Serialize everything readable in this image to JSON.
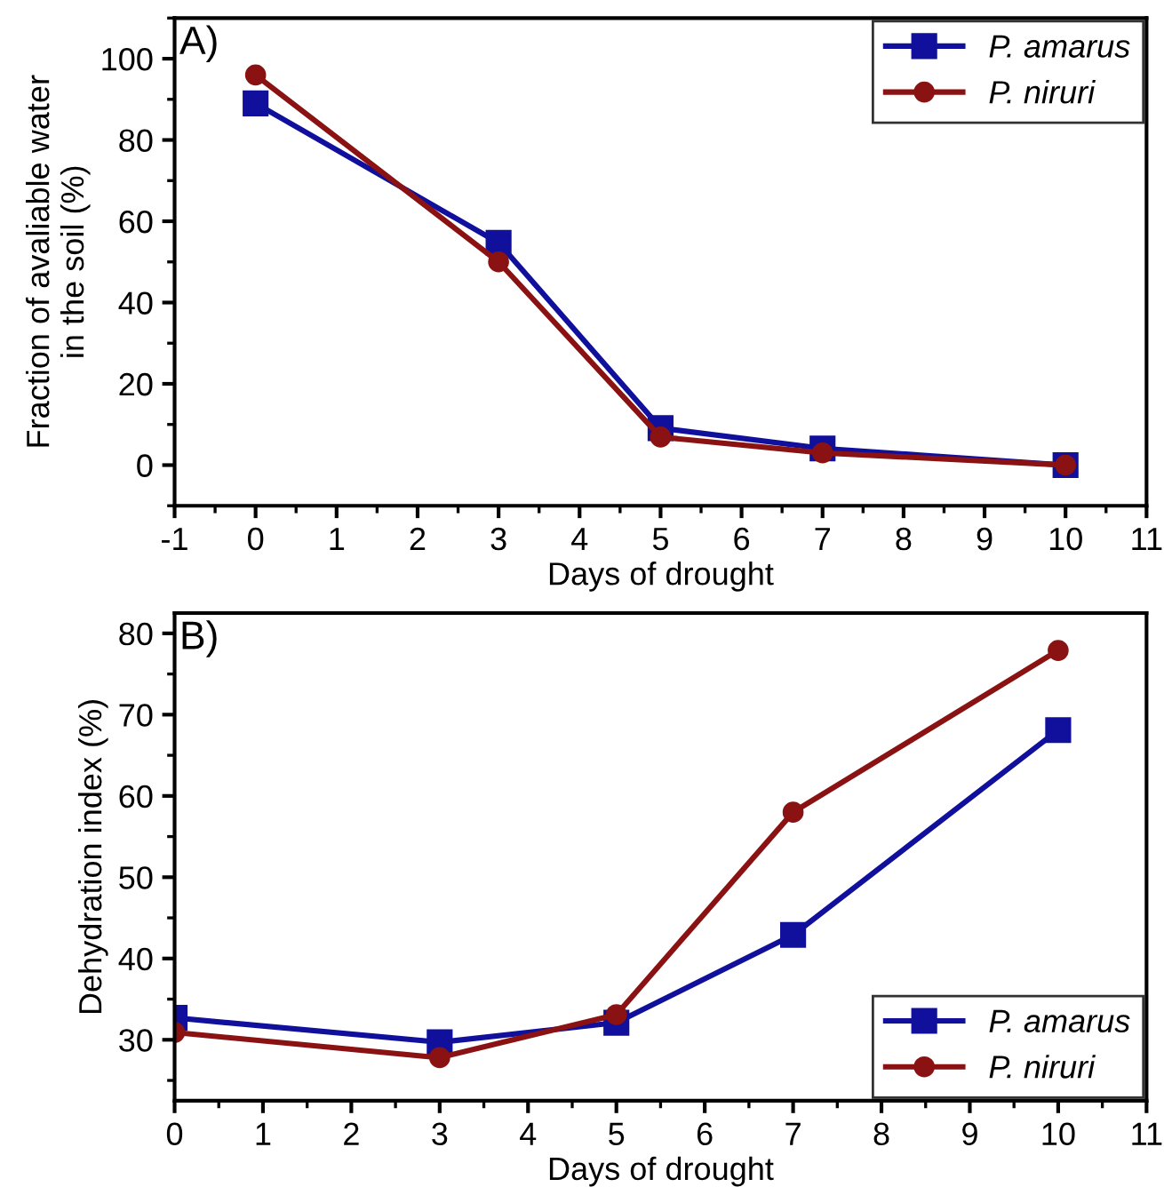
{
  "chart_data": [
    {
      "type": "line",
      "annotations": [
        "A)"
      ],
      "xlabel": "Days of drought",
      "ylabel": "Fraction of avaliable water\nin the soil (%)",
      "x": [
        0,
        3,
        5,
        7,
        10
      ],
      "xlim": [
        -1,
        11
      ],
      "xticks": [
        -1,
        0,
        1,
        2,
        3,
        4,
        5,
        6,
        7,
        8,
        9,
        10,
        11
      ],
      "ylim": [
        -10,
        110
      ],
      "yticks": [
        0,
        20,
        40,
        60,
        80,
        100
      ],
      "legend": "top right",
      "grid": false,
      "series": [
        {
          "name": "P. amarus",
          "color": "#10109c",
          "marker": "square",
          "values": [
            89,
            54.7,
            9.1,
            4.1,
            0
          ]
        },
        {
          "name": "P. niruri",
          "color": "#8b1212",
          "marker": "circle",
          "values": [
            96,
            50,
            6.9,
            3,
            0
          ]
        }
      ]
    },
    {
      "type": "line",
      "annotations": [
        "B)"
      ],
      "xlabel": "Days of drought",
      "ylabel": "Dehydration index (%)",
      "x": [
        0,
        3,
        5,
        7,
        10
      ],
      "xlim": [
        0,
        11
      ],
      "xticks": [
        0,
        1,
        2,
        3,
        4,
        5,
        6,
        7,
        8,
        9,
        10,
        11
      ],
      "ylim": [
        22.5,
        82.5
      ],
      "yticks": [
        30,
        40,
        50,
        60,
        70,
        80
      ],
      "legend": "bottom right",
      "grid": false,
      "series": [
        {
          "name": "P. amarus",
          "color": "#10109c",
          "marker": "square",
          "values": [
            32.7,
            29.7,
            32.1,
            42.9,
            68.1
          ]
        },
        {
          "name": "P. niruri",
          "color": "#8b1212",
          "marker": "circle",
          "values": [
            30.9,
            27.8,
            33.1,
            58.0,
            77.9
          ]
        }
      ]
    }
  ]
}
